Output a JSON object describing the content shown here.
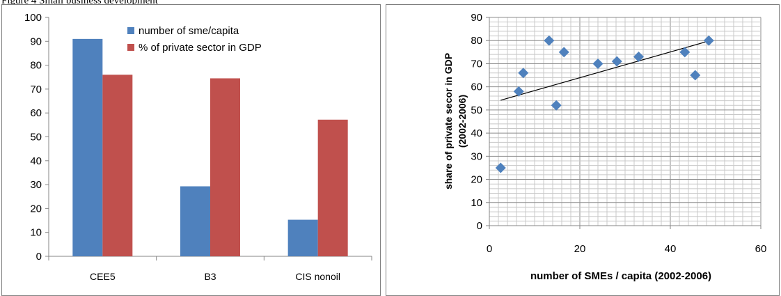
{
  "header": {
    "text": "Figure 4 Small business development"
  },
  "chart_data": [
    {
      "type": "bar",
      "categories": [
        "CEE5",
        "B3",
        "CIS nonoil"
      ],
      "series": [
        {
          "name": "number of sme/capita",
          "values": [
            91,
            29.3,
            15.3
          ],
          "color": "#4f81bd"
        },
        {
          "name": "% of private sector in GDP",
          "values": [
            76,
            74.5,
            57.2
          ],
          "color": "#c0504d"
        }
      ],
      "ylim": [
        0,
        100
      ],
      "yticks": [
        0,
        10,
        20,
        30,
        40,
        50,
        60,
        70,
        80,
        90,
        100
      ],
      "grid": false,
      "legend": "top-center"
    },
    {
      "type": "scatter",
      "xlabel": "number of SMEs  / capita  (2002-2006)",
      "ylabel_lines": [
        "share of private secor in GDP",
        "(2002-2006)"
      ],
      "xlim": [
        0,
        60
      ],
      "ylim": [
        0,
        90
      ],
      "xticks": [
        0,
        20,
        40,
        60
      ],
      "yticks": [
        0,
        10,
        20,
        30,
        40,
        50,
        60,
        70,
        80,
        90
      ],
      "grid": true,
      "marker_color": "#4f81bd",
      "points": [
        {
          "x": 2.5,
          "y": 25
        },
        {
          "x": 6.5,
          "y": 58
        },
        {
          "x": 7.5,
          "y": 66
        },
        {
          "x": 13.2,
          "y": 80
        },
        {
          "x": 14.8,
          "y": 52
        },
        {
          "x": 16.5,
          "y": 75
        },
        {
          "x": 24,
          "y": 70
        },
        {
          "x": 28.2,
          "y": 71
        },
        {
          "x": 33,
          "y": 73
        },
        {
          "x": 43.2,
          "y": 75
        },
        {
          "x": 45.5,
          "y": 65
        },
        {
          "x": 48.5,
          "y": 80
        }
      ],
      "trendline": {
        "x": [
          2.5,
          48.5
        ],
        "y": [
          54.2,
          79.8
        ]
      }
    }
  ]
}
